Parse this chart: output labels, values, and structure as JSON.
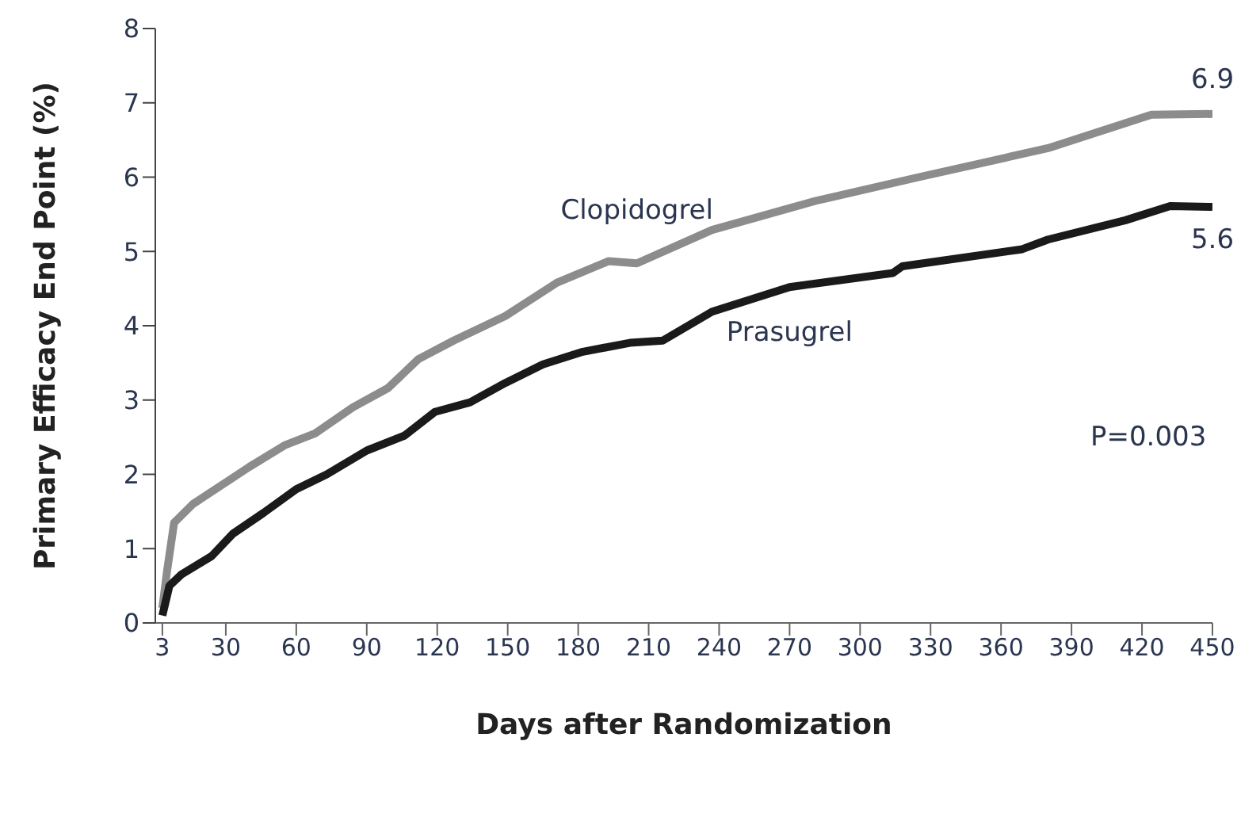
{
  "chart_data": {
    "type": "line",
    "xlabel": "Days after Randomization",
    "ylabel": "Primary Efficacy End Point (%)",
    "xlim": [
      0,
      450
    ],
    "xticks": [
      3,
      30,
      60,
      90,
      120,
      150,
      180,
      210,
      240,
      270,
      300,
      330,
      360,
      390,
      420,
      450
    ],
    "ylim": [
      0,
      8
    ],
    "yticks": [
      0,
      1,
      2,
      3,
      4,
      5,
      6,
      7,
      8
    ],
    "marker": "none",
    "line_style": "solid",
    "series": [
      {
        "name": "Clopidogrel",
        "color": "#8c8c8c",
        "x": [
          3,
          5,
          8,
          16,
          29,
          40,
          55,
          68,
          84,
          99,
          112,
          127,
          149,
          171,
          193,
          205,
          237,
          281,
          325,
          380,
          424,
          450
        ],
        "values": [
          0.2,
          0.7,
          1.35,
          1.6,
          1.87,
          2.1,
          2.39,
          2.55,
          2.9,
          3.16,
          3.55,
          3.8,
          4.13,
          4.58,
          4.87,
          4.84,
          5.29,
          5.68,
          6.0,
          6.39,
          6.84,
          6.85
        ]
      },
      {
        "name": "Prasugrel",
        "color": "#1a1a1a",
        "x": [
          3,
          6,
          11,
          24,
          33,
          46,
          60,
          73,
          90,
          106,
          119,
          134,
          149,
          165,
          182,
          202,
          216,
          237,
          270,
          314,
          318,
          369,
          380,
          413,
          432,
          450
        ],
        "values": [
          0.1,
          0.5,
          0.65,
          0.9,
          1.2,
          1.48,
          1.8,
          2.0,
          2.32,
          2.52,
          2.84,
          2.97,
          3.23,
          3.48,
          3.65,
          3.77,
          3.8,
          4.19,
          4.52,
          4.71,
          4.8,
          5.03,
          5.16,
          5.42,
          5.61,
          5.6
        ]
      }
    ],
    "annotations": [
      {
        "text": "6.9",
        "x": 450,
        "y": 6.9
      },
      {
        "text": "5.6",
        "x": 450,
        "y": 5.6
      },
      "P=0.003"
    ]
  }
}
